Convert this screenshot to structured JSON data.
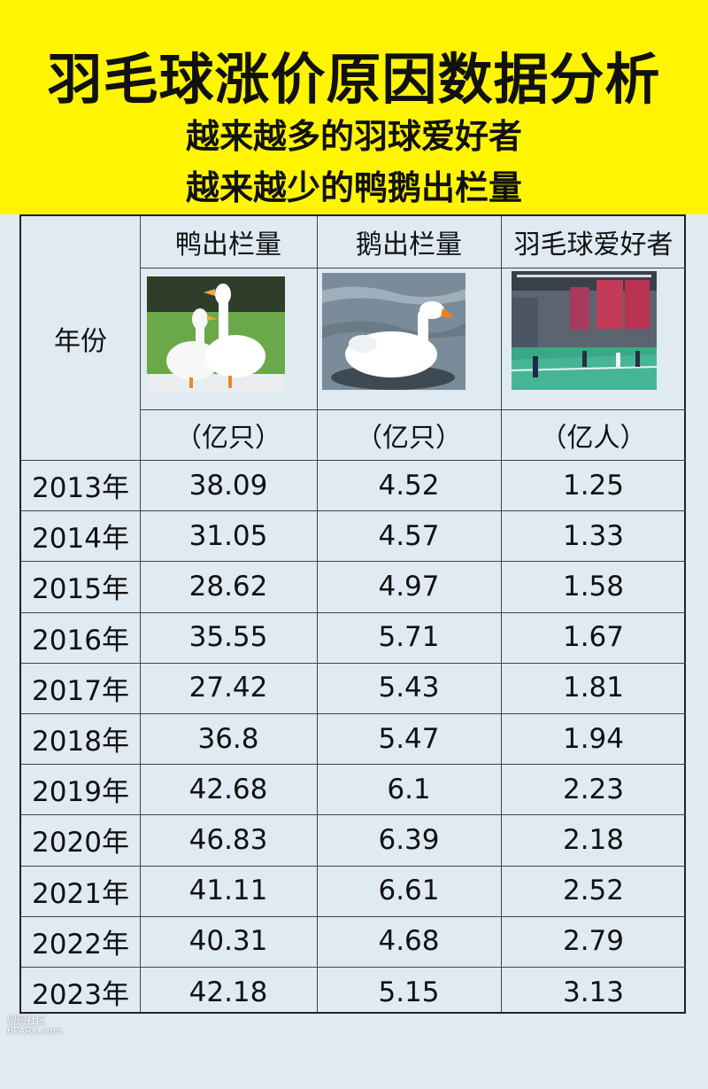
{
  "header": {
    "title": "羽毛球涨价原因数据分析",
    "subtitle1": "越来越多的羽球爱好者",
    "subtitle2": "越来越少的鸭鹅出栏量"
  },
  "table": {
    "year_header": "年份",
    "columns": [
      {
        "label": "鸭出栏量",
        "unit": "（亿只）",
        "image": "ducks-photo"
      },
      {
        "label": "鹅出栏量",
        "unit": "（亿只）",
        "image": "goose-photo"
      },
      {
        "label": "羽毛球爱好者",
        "unit": "（亿人）",
        "image": "badminton-hall-photo"
      }
    ],
    "rows": [
      {
        "year": "2013年",
        "duck": "38.09",
        "goose": "4.52",
        "fans": "1.25"
      },
      {
        "year": "2014年",
        "duck": "31.05",
        "goose": "4.57",
        "fans": "1.33"
      },
      {
        "year": "2015年",
        "duck": "28.62",
        "goose": "4.97",
        "fans": "1.58"
      },
      {
        "year": "2016年",
        "duck": "35.55",
        "goose": "5.71",
        "fans": "1.67"
      },
      {
        "year": "2017年",
        "duck": "27.42",
        "goose": "5.43",
        "fans": "1.81"
      },
      {
        "year": "2018年",
        "duck": "36.8",
        "goose": "5.47",
        "fans": "1.94"
      },
      {
        "year": "2019年",
        "duck": "42.68",
        "goose": "6.1",
        "fans": "2.23"
      },
      {
        "year": "2020年",
        "duck": "46.83",
        "goose": "6.39",
        "fans": "2.18"
      },
      {
        "year": "2021年",
        "duck": "41.11",
        "goose": "6.61",
        "fans": "2.52"
      },
      {
        "year": "2022年",
        "duck": "40.31",
        "goose": "4.68",
        "fans": "2.79"
      },
      {
        "year": "2023年",
        "duck": "42.18",
        "goose": "5.15",
        "fans": "3.13"
      }
    ]
  },
  "watermark": {
    "line1": "留园社区",
    "line2": "6PARK.com"
  },
  "chart_data": {
    "type": "table",
    "title": "羽毛球涨价原因数据分析",
    "subtitle": [
      "越来越多的羽球爱好者",
      "越来越少的鸭鹅出栏量"
    ],
    "categories": [
      "2013年",
      "2014年",
      "2015年",
      "2016年",
      "2017年",
      "2018年",
      "2019年",
      "2020年",
      "2021年",
      "2022年",
      "2023年"
    ],
    "series": [
      {
        "name": "鸭出栏量",
        "unit": "（亿只）",
        "values": [
          38.09,
          31.05,
          28.62,
          35.55,
          27.42,
          36.8,
          42.68,
          46.83,
          41.11,
          40.31,
          42.18
        ]
      },
      {
        "name": "鹅出栏量",
        "unit": "（亿只）",
        "values": [
          4.52,
          4.57,
          4.97,
          5.71,
          5.43,
          5.47,
          6.1,
          6.39,
          6.61,
          4.68,
          5.15
        ]
      },
      {
        "name": "羽毛球爱好者",
        "unit": "（亿人）",
        "values": [
          1.25,
          1.33,
          1.58,
          1.67,
          1.81,
          1.94,
          2.23,
          2.18,
          2.52,
          2.79,
          3.13
        ]
      }
    ]
  },
  "colors": {
    "header_bg": "#fff500",
    "table_bg": "#dfeaf2"
  }
}
